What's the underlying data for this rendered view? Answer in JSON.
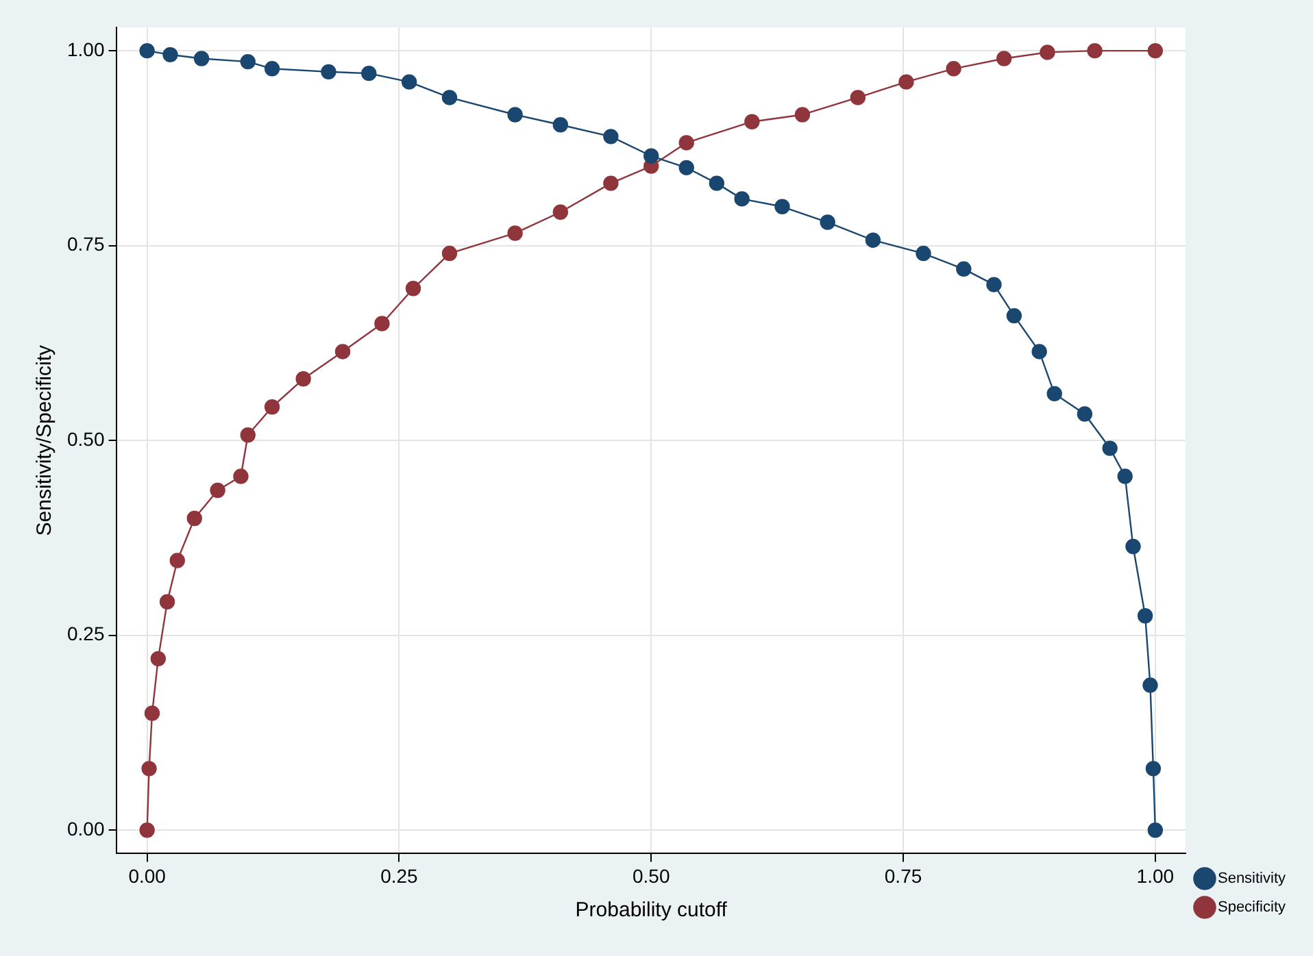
{
  "chart_data": {
    "type": "line",
    "xlabel": "Probability cutoff",
    "ylabel": "Sensitivity/Specificity",
    "xlim": [
      -0.03,
      1.03
    ],
    "ylim": [
      -0.03,
      1.03
    ],
    "xticks": [
      {
        "value": 0,
        "label": "0.00"
      },
      {
        "value": 0.25,
        "label": "0.25"
      },
      {
        "value": 0.5,
        "label": "0.50"
      },
      {
        "value": 0.75,
        "label": "0.75"
      },
      {
        "value": 1,
        "label": "1.00"
      }
    ],
    "yticks": [
      {
        "value": 0,
        "label": "0.00"
      },
      {
        "value": 0.25,
        "label": "0.25"
      },
      {
        "value": 0.5,
        "label": "0.50"
      },
      {
        "value": 0.75,
        "label": "0.75"
      },
      {
        "value": 1,
        "label": "1.00"
      }
    ],
    "grid": true,
    "legend": "bottom right",
    "marker": "circle",
    "line_style": "solid",
    "series": [
      {
        "name": "Sensitivity",
        "color": "#1a476f",
        "x": [
          0,
          0.023,
          0.054,
          0.1,
          0.124,
          0.18,
          0.22,
          0.26,
          0.3,
          0.365,
          0.41,
          0.46,
          0.5,
          0.535,
          0.565,
          0.59,
          0.63,
          0.675,
          0.72,
          0.77,
          0.81,
          0.84,
          0.86,
          0.885,
          0.9,
          0.93,
          0.955,
          0.97,
          0.978,
          0.99,
          0.995,
          0.998,
          1
        ],
        "values": [
          1,
          0.995,
          0.99,
          0.986,
          0.977,
          0.973,
          0.971,
          0.96,
          0.94,
          0.918,
          0.905,
          0.89,
          0.865,
          0.85,
          0.83,
          0.81,
          0.8,
          0.78,
          0.757,
          0.74,
          0.72,
          0.7,
          0.66,
          0.614,
          0.56,
          0.534,
          0.49,
          0.454,
          0.364,
          0.275,
          0.186,
          0.079,
          0
        ]
      },
      {
        "name": "Specificity",
        "color": "#90353b",
        "x": [
          0,
          0.002,
          0.005,
          0.011,
          0.02,
          0.03,
          0.047,
          0.07,
          0.093,
          0.1,
          0.124,
          0.155,
          0.194,
          0.233,
          0.264,
          0.3,
          0.365,
          0.41,
          0.46,
          0.5,
          0.535,
          0.6,
          0.65,
          0.705,
          0.753,
          0.8,
          0.85,
          0.893,
          0.94,
          1
        ],
        "values": [
          0,
          0.079,
          0.15,
          0.22,
          0.293,
          0.346,
          0.4,
          0.436,
          0.454,
          0.507,
          0.543,
          0.579,
          0.614,
          0.65,
          0.695,
          0.74,
          0.766,
          0.793,
          0.83,
          0.852,
          0.882,
          0.909,
          0.918,
          0.94,
          0.96,
          0.977,
          0.99,
          0.998,
          1,
          1
        ]
      }
    ]
  }
}
